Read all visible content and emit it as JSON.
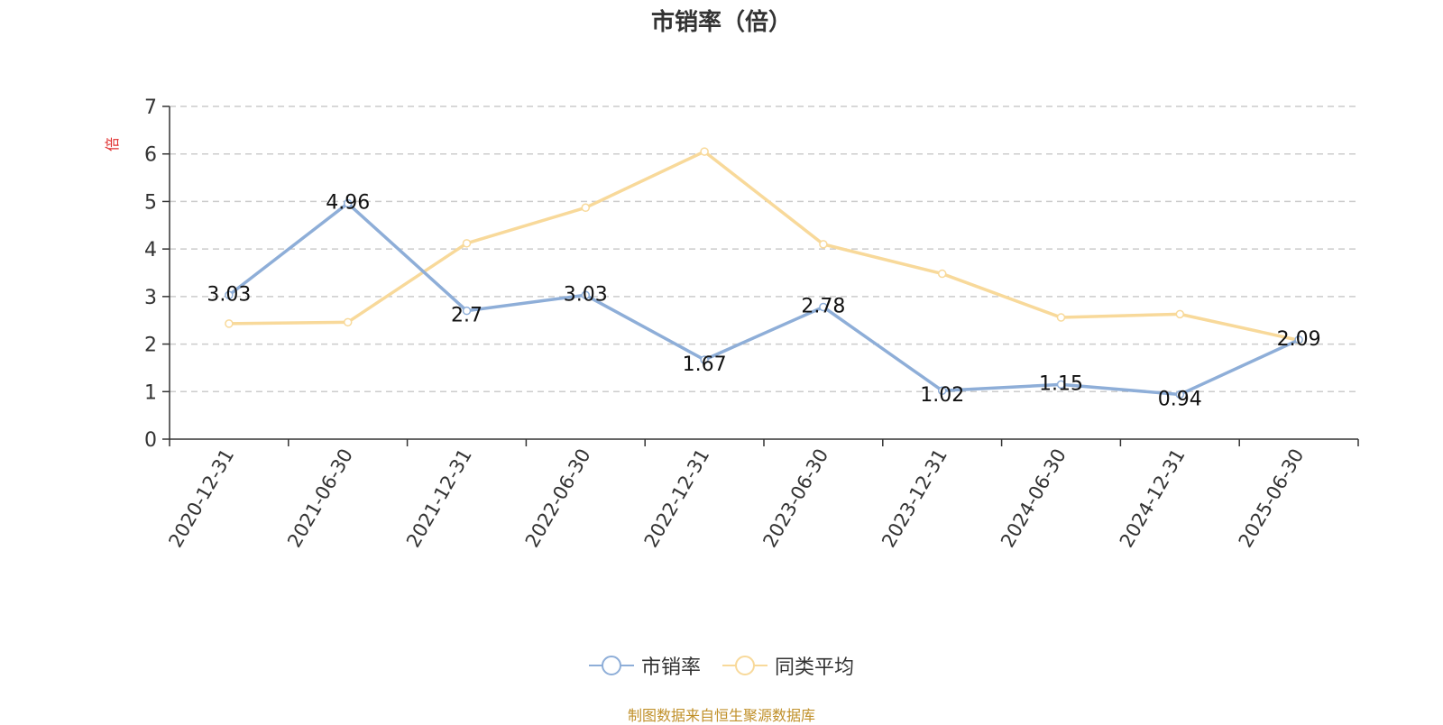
{
  "chart_data": {
    "type": "line",
    "title": "市销率（倍）",
    "ylabel": "倍",
    "xlabel": "",
    "ylim": [
      0,
      7
    ],
    "yticks": [
      0,
      1,
      2,
      3,
      4,
      5,
      6,
      7
    ],
    "grid": true,
    "legend_position": "bottom",
    "categories": [
      "2020-12-31",
      "2021-06-30",
      "2021-12-31",
      "2022-06-30",
      "2022-12-31",
      "2023-06-30",
      "2023-12-31",
      "2024-06-30",
      "2024-12-31",
      "2025-06-30"
    ],
    "series": [
      {
        "name": "市销率",
        "color": "#8eaed8",
        "values": [
          3.03,
          4.96,
          2.7,
          3.03,
          1.67,
          2.78,
          1.02,
          1.15,
          0.94,
          2.09
        ],
        "data_labels": [
          "3.03",
          "4.96",
          "2.7",
          "3.03",
          "1.67",
          "2.78",
          "1.02",
          "1.15",
          "0.94",
          "2.09"
        ]
      },
      {
        "name": "同类平均",
        "color": "#f8d99a",
        "values": [
          2.43,
          2.46,
          4.12,
          4.87,
          6.05,
          4.1,
          3.48,
          2.56,
          2.63,
          2.08
        ]
      }
    ]
  },
  "source_note": "制图数据来自恒生聚源数据库"
}
